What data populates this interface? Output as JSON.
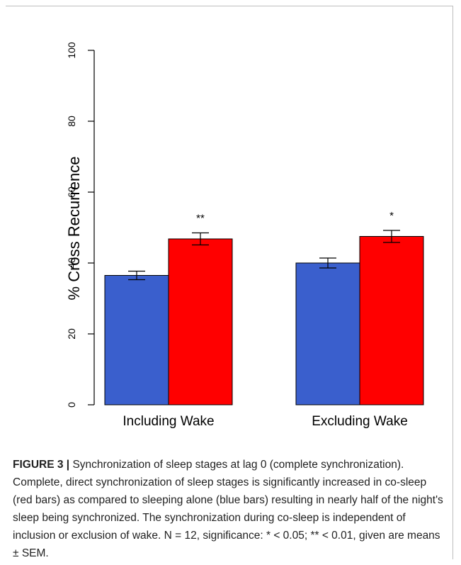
{
  "colors": {
    "alone": "#3a5fcd",
    "cosleep": "#ff0000",
    "axis": "#000000"
  },
  "chart_data": {
    "type": "bar",
    "categories": [
      "Including Wake",
      "Excluding Wake"
    ],
    "series": [
      {
        "values": [
          36.5,
          40.0
        ],
        "errors": [
          1.2,
          1.4
        ],
        "color": "#3a5fcd"
      },
      {
        "values": [
          46.8,
          47.5
        ],
        "errors": [
          1.7,
          1.7
        ],
        "color": "#ff0000"
      }
    ],
    "significance": [
      "**",
      "*"
    ],
    "ylabel": "% Cross Recurrence",
    "ylim": [
      0,
      100
    ],
    "yticks": [
      0,
      20,
      40,
      60,
      80,
      100
    ],
    "grid": false
  },
  "caption": {
    "label": "FIGURE 3 |",
    "text": "Synchronization of sleep stages at lag 0 (complete synchronization). Complete, direct synchronization of sleep stages is significantly increased in co-sleep (red bars) as compared to sleeping alone (blue bars) resulting in nearly half of the night's sleep being synchronized. The synchronization during co-sleep is independent of inclusion or exclusion of wake. N = 12, significance: * < 0.05; ** < 0.01, given are means ± SEM."
  }
}
